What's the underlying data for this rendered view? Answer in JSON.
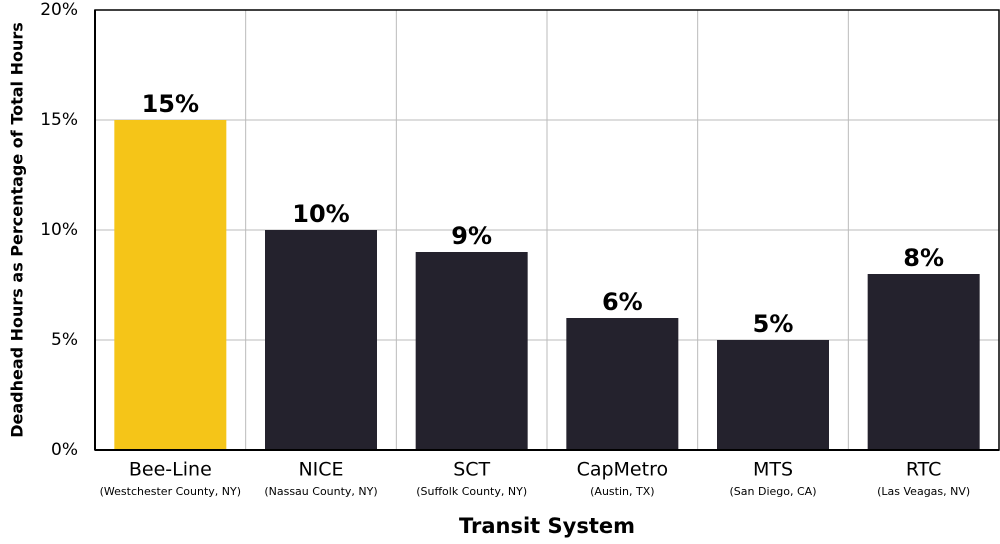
{
  "chart_data": {
    "type": "bar",
    "x_label": "Transit System",
    "y_label": "Deadhead Hours as Percentage of Total Hours",
    "categories": [
      "Bee-Line",
      "NICE",
      "SCT",
      "CapMetro",
      "MTS",
      "RTC"
    ],
    "sublabels": [
      "(Westchester County, NY)",
      "(Nassau County, NY)",
      "(Suffolk County, NY)",
      "(Austin, TX)",
      "(San Diego, CA)",
      "(Las Veagas, NV)"
    ],
    "values": [
      15,
      10,
      9,
      6,
      5,
      8
    ],
    "value_labels": [
      "15%",
      "10%",
      "9%",
      "6%",
      "5%",
      "8%"
    ],
    "colors": [
      "#f5c518",
      "#24222d",
      "#24222d",
      "#24222d",
      "#24222d",
      "#24222d"
    ],
    "ylim": [
      0,
      20
    ],
    "yticks": [
      {
        "value": 0,
        "label": "0%"
      },
      {
        "value": 5,
        "label": "5%"
      },
      {
        "value": 10,
        "label": "10%"
      },
      {
        "value": 15,
        "label": "15%"
      },
      {
        "value": 20,
        "label": "20%"
      }
    ],
    "grid": true
  }
}
